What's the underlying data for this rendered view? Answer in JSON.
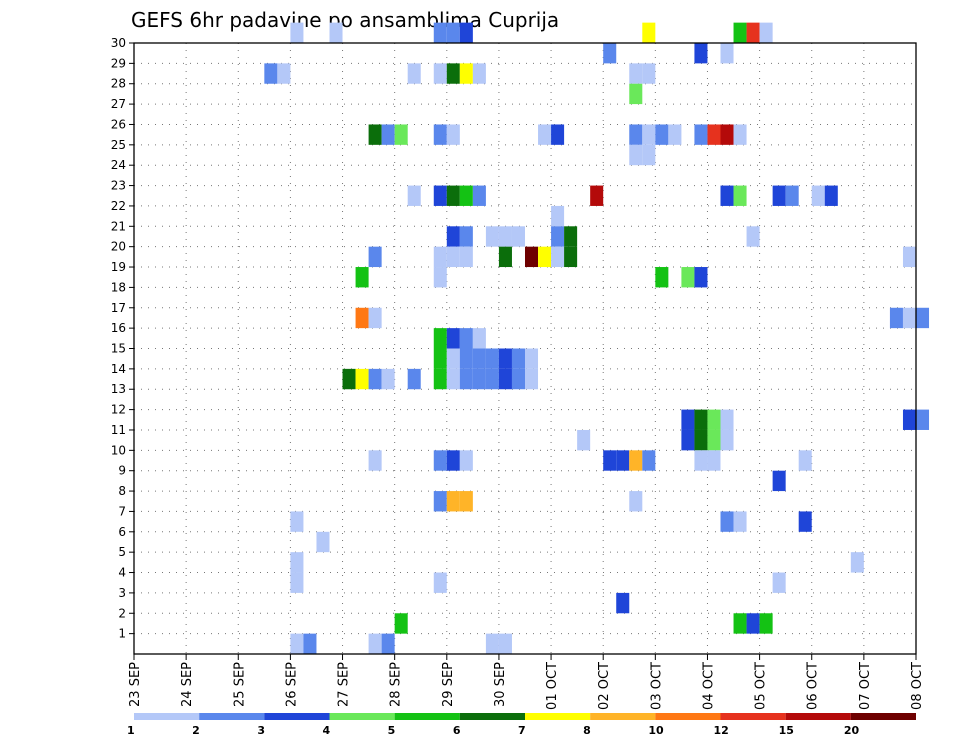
{
  "chart_data": {
    "type": "heatmap",
    "title": "GEFS 6hr padavine po ansamblima Cuprija",
    "x_labels": [
      "23 SEP",
      "24 SEP",
      "25 SEP",
      "26 SEP",
      "27 SEP",
      "28 SEP",
      "29 SEP",
      "30 SEP",
      "01 OCT",
      "02 OCT",
      "03 OCT",
      "04 OCT",
      "05 OCT",
      "06 OCT",
      "07 OCT",
      "08 OCT"
    ],
    "y_labels": [
      "1",
      "2",
      "3",
      "4",
      "5",
      "6",
      "7",
      "8",
      "9",
      "10",
      "11",
      "12",
      "13",
      "14",
      "15",
      "16",
      "17",
      "18",
      "19",
      "20",
      "21",
      "22",
      "23",
      "24",
      "25",
      "26",
      "27",
      "28",
      "29",
      "30"
    ],
    "xlim_days": [
      0,
      15
    ],
    "step_hours": 6,
    "legend_labels": [
      "1",
      "2",
      "3",
      "4",
      "5",
      "6",
      "7",
      "8",
      "10",
      "12",
      "15",
      "20"
    ],
    "legend_colors": [
      "#b4c8f8",
      "#5a87ec",
      "#1f45d8",
      "#6ae85a",
      "#14c214",
      "#0b6e0b",
      "#ffff00",
      "#ffb428",
      "#ff7814",
      "#e6321e",
      "#b40a0a",
      "#6e0000"
    ],
    "cells": [
      [
        30,
        3,
        0
      ],
      [
        30,
        3.75,
        0
      ],
      [
        30,
        5.75,
        1
      ],
      [
        30,
        6,
        1
      ],
      [
        30,
        6.25,
        2
      ],
      [
        30,
        9.75,
        6
      ],
      [
        30,
        11.5,
        4
      ],
      [
        30,
        11.75,
        9
      ],
      [
        30,
        12,
        0
      ],
      [
        29,
        9,
        1
      ],
      [
        29,
        10.75,
        2
      ],
      [
        29,
        11.25,
        0
      ],
      [
        28,
        2.5,
        1
      ],
      [
        28,
        2.75,
        0
      ],
      [
        28,
        5.25,
        0
      ],
      [
        28,
        5.75,
        0
      ],
      [
        28,
        6,
        5
      ],
      [
        28,
        6.25,
        6
      ],
      [
        28,
        6.5,
        0
      ],
      [
        28,
        9.5,
        0
      ],
      [
        28,
        9.75,
        0
      ],
      [
        27,
        9.5,
        3
      ],
      [
        25,
        4.5,
        5
      ],
      [
        25,
        4.75,
        1
      ],
      [
        25,
        5,
        3
      ],
      [
        25,
        5.75,
        1
      ],
      [
        25,
        6,
        0
      ],
      [
        25,
        7.75,
        0
      ],
      [
        25,
        8,
        2
      ],
      [
        25,
        9.5,
        1
      ],
      [
        25,
        9.75,
        0
      ],
      [
        25,
        10,
        1
      ],
      [
        25,
        10.25,
        0
      ],
      [
        25,
        10.75,
        1
      ],
      [
        25,
        11,
        9
      ],
      [
        25,
        11.25,
        10
      ],
      [
        25,
        11.5,
        0
      ],
      [
        24,
        9.5,
        0
      ],
      [
        24,
        9.75,
        0
      ],
      [
        22,
        5.25,
        0
      ],
      [
        22,
        5.75,
        2
      ],
      [
        22,
        6,
        5
      ],
      [
        22,
        6.25,
        4
      ],
      [
        22,
        6.5,
        1
      ],
      [
        22,
        8.75,
        10
      ],
      [
        22,
        11.25,
        2
      ],
      [
        22,
        11.5,
        3
      ],
      [
        22,
        12.25,
        2
      ],
      [
        22,
        12.5,
        1
      ],
      [
        22,
        13,
        0
      ],
      [
        22,
        13.25,
        2
      ],
      [
        21,
        8,
        0
      ],
      [
        20,
        6,
        2
      ],
      [
        20,
        6.25,
        1
      ],
      [
        20,
        6.75,
        0
      ],
      [
        20,
        7,
        0
      ],
      [
        20,
        7.25,
        0
      ],
      [
        20,
        8,
        1
      ],
      [
        20,
        8.25,
        5
      ],
      [
        20,
        11.75,
        0
      ],
      [
        19,
        4.5,
        1
      ],
      [
        19,
        5.75,
        0
      ],
      [
        19,
        6,
        0
      ],
      [
        19,
        6.25,
        0
      ],
      [
        19,
        7,
        5
      ],
      [
        19,
        7.5,
        11
      ],
      [
        19,
        7.75,
        6
      ],
      [
        19,
        8,
        0
      ],
      [
        19,
        8.25,
        5
      ],
      [
        19,
        14.75,
        0
      ],
      [
        18,
        4.25,
        4
      ],
      [
        18,
        5.75,
        0
      ],
      [
        18,
        10,
        4
      ],
      [
        18,
        10.5,
        3
      ],
      [
        18,
        10.75,
        2
      ],
      [
        16,
        4.25,
        8
      ],
      [
        16,
        4.5,
        0
      ],
      [
        16,
        14.5,
        1
      ],
      [
        16,
        14.75,
        0
      ],
      [
        16,
        15,
        1
      ],
      [
        15,
        5.75,
        4
      ],
      [
        15,
        6,
        2
      ],
      [
        15,
        6.25,
        1
      ],
      [
        15,
        6.5,
        0
      ],
      [
        14,
        5.75,
        4
      ],
      [
        14,
        6,
        0
      ],
      [
        14,
        6.25,
        1
      ],
      [
        14,
        6.5,
        1
      ],
      [
        14,
        6.75,
        1
      ],
      [
        14,
        7,
        2
      ],
      [
        14,
        7.25,
        1
      ],
      [
        14,
        7.5,
        0
      ],
      [
        13,
        4,
        5
      ],
      [
        13,
        4.25,
        6
      ],
      [
        13,
        4.5,
        1
      ],
      [
        13,
        4.75,
        0
      ],
      [
        13,
        5.25,
        1
      ],
      [
        13,
        5.75,
        4
      ],
      [
        13,
        6,
        0
      ],
      [
        13,
        6.25,
        1
      ],
      [
        13,
        6.5,
        1
      ],
      [
        13,
        6.75,
        1
      ],
      [
        13,
        7,
        2
      ],
      [
        13,
        7.25,
        1
      ],
      [
        13,
        7.5,
        0
      ],
      [
        11,
        10.5,
        2
      ],
      [
        11,
        10.75,
        5
      ],
      [
        11,
        11,
        3
      ],
      [
        11,
        11.25,
        0
      ],
      [
        11,
        14.75,
        2
      ],
      [
        11,
        15,
        1
      ],
      [
        10,
        8.5,
        0
      ],
      [
        10,
        10.5,
        2
      ],
      [
        10,
        10.75,
        5
      ],
      [
        10,
        11,
        3
      ],
      [
        10,
        11.25,
        0
      ],
      [
        9,
        4.5,
        0
      ],
      [
        9,
        5.75,
        1
      ],
      [
        9,
        6,
        2
      ],
      [
        9,
        6.25,
        0
      ],
      [
        9,
        9,
        2
      ],
      [
        9,
        9.25,
        2
      ],
      [
        9,
        9.5,
        7
      ],
      [
        9,
        9.75,
        1
      ],
      [
        9,
        10.75,
        0
      ],
      [
        9,
        11,
        0
      ],
      [
        9,
        12.75,
        0
      ],
      [
        8,
        12.25,
        2
      ],
      [
        7,
        5.75,
        1
      ],
      [
        7,
        6,
        7
      ],
      [
        7,
        6.25,
        7
      ],
      [
        7,
        9.5,
        0
      ],
      [
        6,
        3,
        0
      ],
      [
        6,
        11.25,
        1
      ],
      [
        6,
        11.5,
        0
      ],
      [
        6,
        12.75,
        2
      ],
      [
        5,
        3.5,
        0
      ],
      [
        4,
        3,
        0
      ],
      [
        4,
        13.75,
        0
      ],
      [
        3,
        3,
        0
      ],
      [
        3,
        5.75,
        0
      ],
      [
        3,
        12.25,
        0
      ],
      [
        2,
        9.25,
        2
      ],
      [
        1,
        5,
        4
      ],
      [
        1,
        11.5,
        4
      ],
      [
        1,
        11.75,
        2
      ],
      [
        1,
        12,
        4
      ],
      [
        0,
        3,
        0
      ],
      [
        0,
        3.25,
        1
      ],
      [
        0,
        4.5,
        0
      ],
      [
        0,
        4.75,
        1
      ],
      [
        0,
        6.75,
        0
      ],
      [
        0,
        7,
        0
      ]
    ]
  }
}
